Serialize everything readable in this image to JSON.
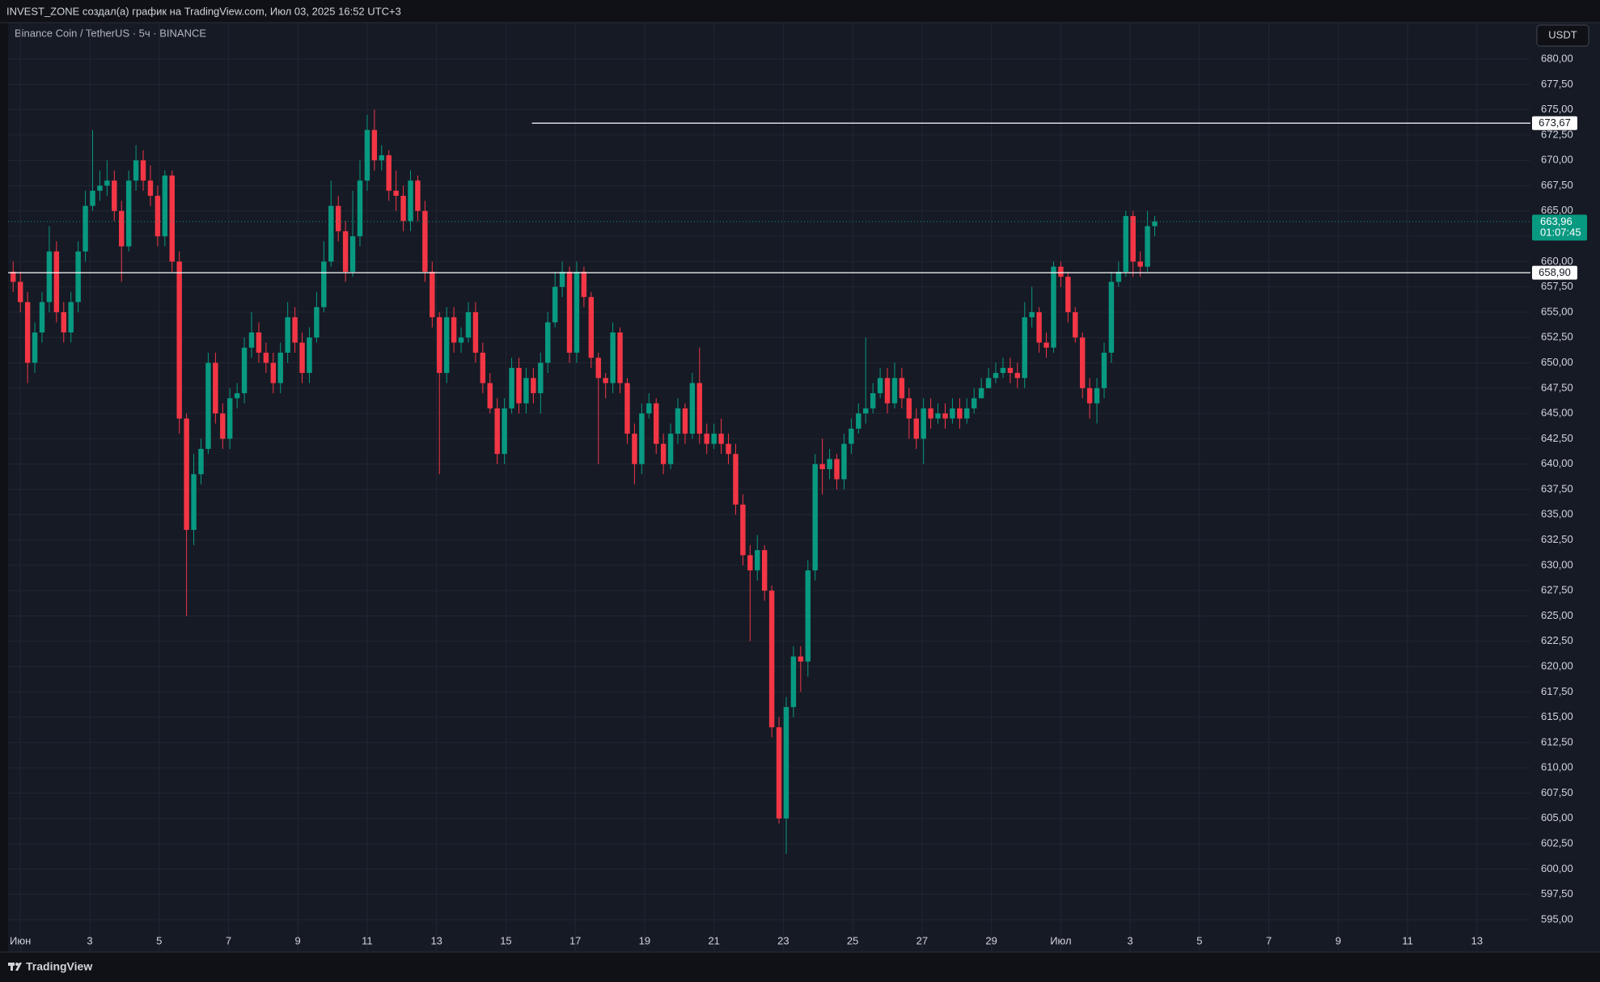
{
  "header": {
    "caption": "INVEST_ZONE создал(а) график на TradingView.com, Июл 03, 2025 16:52 UTC+3"
  },
  "footer": {
    "brand": "TradingView"
  },
  "chart_data": {
    "type": "candlestick",
    "title": "Binance Coin / TetherUS · 5ч · BINANCE",
    "currency": "USDT",
    "x": [
      -5,
      0,
      5,
      10,
      15,
      20,
      25,
      30,
      35,
      40,
      45,
      50,
      55,
      60,
      65,
      70,
      75,
      80,
      85,
      90,
      95,
      100,
      105,
      110,
      115,
      120,
      125,
      130,
      135,
      140,
      145,
      150,
      155,
      160,
      165,
      170,
      175,
      180,
      185,
      190,
      195,
      200,
      205,
      210,
      215,
      220,
      225,
      230,
      235,
      240,
      245,
      250,
      255,
      260,
      265,
      270,
      275,
      280,
      285,
      290,
      295,
      300,
      305,
      310,
      315,
      320,
      325,
      330,
      335,
      340,
      345,
      350,
      355,
      360,
      365,
      370,
      375,
      380,
      385,
      390,
      395,
      400,
      405,
      410,
      415,
      420,
      425,
      430,
      435,
      440,
      445,
      450,
      455,
      460,
      465,
      470,
      475,
      480,
      485,
      490,
      495,
      500,
      505,
      510,
      515,
      520,
      525,
      530,
      535,
      540,
      545,
      550,
      555,
      560,
      565,
      570,
      575,
      580,
      585,
      590,
      595,
      600,
      605,
      610,
      615,
      620,
      625,
      630,
      635,
      640,
      645,
      650,
      655,
      660,
      665,
      670,
      675,
      680,
      685,
      690,
      695,
      700,
      705,
      710,
      715,
      720,
      725,
      730,
      735,
      740,
      745,
      750,
      755,
      760,
      765,
      770,
      775,
      780,
      785
    ],
    "open": [
      659,
      658,
      656,
      650,
      653,
      656,
      661,
      655,
      653,
      656,
      661,
      665.5,
      667,
      667.5,
      668,
      665,
      661.5,
      668,
      670,
      668,
      666.5,
      662.5,
      668.5,
      660,
      644.5,
      633.5,
      639,
      641.5,
      650,
      645,
      642.5,
      646.5,
      647,
      651.5,
      653,
      651,
      650,
      648,
      651,
      654.5,
      652,
      649,
      652.5,
      655.5,
      660,
      665.5,
      663,
      659,
      662.5,
      668,
      673,
      670,
      670.5,
      667,
      666.5,
      664,
      668,
      665,
      659,
      654.5,
      649,
      654.5,
      652,
      652.5,
      655,
      651,
      648,
      645.5,
      641,
      645.5,
      649.5,
      646,
      648.5,
      647,
      650,
      654,
      657.5,
      659,
      651,
      659,
      656.5,
      650.5,
      648.5,
      648,
      653,
      648,
      643,
      640,
      645,
      646,
      642,
      640,
      643,
      645.5,
      643,
      648,
      643,
      642,
      643,
      642,
      641,
      636,
      631,
      629.5,
      631.5,
      627.5,
      614,
      605,
      616,
      621,
      620.5,
      629.5,
      640,
      639.5,
      640.5,
      638.5,
      642,
      643.5,
      645,
      645.5,
      647,
      648.5,
      646,
      648.5,
      646.5,
      644.5,
      642.5,
      645.5,
      644.5,
      645,
      644.5,
      645.5,
      644.5,
      645.5,
      646.5,
      647.5,
      648.5,
      649,
      649.5,
      649,
      648.5,
      654.5,
      655,
      652,
      651.5,
      659.5,
      658.5,
      655,
      652.5,
      647.5,
      646,
      647.5,
      651,
      658,
      659,
      664.5,
      660,
      659.5,
      663.5
    ],
    "high": [
      660,
      659,
      657,
      654,
      657,
      663.5,
      662,
      656,
      657,
      662,
      667,
      673,
      669,
      670,
      669,
      666,
      669,
      671.5,
      671,
      669.5,
      667.5,
      669,
      669,
      661,
      645,
      641,
      642.5,
      651,
      651,
      646,
      647.5,
      648,
      652.5,
      655,
      654,
      652,
      651,
      652,
      656,
      655.5,
      653,
      653.5,
      657,
      662,
      668,
      666.5,
      664,
      667,
      670,
      674.5,
      675,
      671.5,
      671,
      669,
      667.5,
      669,
      668.5,
      666,
      660,
      655,
      655.5,
      655.5,
      653.5,
      656,
      656,
      652,
      649,
      646.5,
      646.5,
      650.5,
      650.5,
      649.5,
      649.5,
      651,
      655,
      659,
      660,
      659.5,
      660,
      659.5,
      657,
      651,
      649,
      654,
      653.5,
      648.5,
      644,
      646,
      647,
      646.5,
      643,
      644,
      646.5,
      646,
      649,
      651.5,
      644,
      644,
      644.5,
      643,
      642,
      637,
      632,
      633,
      632,
      628,
      615,
      617,
      622,
      622,
      630.5,
      641,
      642.5,
      641.5,
      641,
      643,
      644.5,
      646,
      652.5,
      648,
      649.5,
      649.5,
      650,
      649.5,
      647.5,
      645.5,
      646.5,
      646.5,
      646,
      646,
      646.5,
      646.5,
      646.5,
      647.5,
      648.5,
      649.5,
      650,
      650.5,
      650.5,
      650,
      656,
      657.5,
      655.5,
      653,
      660,
      660,
      659,
      655.5,
      653,
      648.5,
      648.5,
      652,
      659,
      660,
      665,
      665,
      661,
      665,
      664.5
    ],
    "low": [
      657,
      655,
      648,
      649,
      652,
      655,
      654,
      652,
      652,
      655,
      660,
      665,
      666,
      666.5,
      664,
      658,
      661,
      667,
      667,
      665.5,
      661.5,
      661.5,
      659,
      643,
      625,
      632,
      638,
      641,
      644,
      641.5,
      641.5,
      645.5,
      646,
      650.5,
      650,
      649,
      647,
      647,
      650,
      651,
      648,
      648,
      652,
      655,
      659.5,
      662,
      658,
      658.5,
      661.5,
      667,
      669,
      669,
      666,
      665,
      663,
      663,
      664,
      658,
      653.5,
      639,
      648,
      651,
      651,
      652,
      650,
      647,
      645,
      640,
      640,
      645,
      645,
      645,
      646,
      645,
      649,
      653.5,
      656.5,
      650,
      650,
      655.5,
      649.5,
      640,
      646.5,
      647,
      647,
      642,
      638,
      639,
      644.5,
      641,
      639,
      639.5,
      642,
      642,
      642.5,
      642,
      641,
      641.5,
      641,
      640,
      635,
      630,
      622.5,
      628.5,
      626.5,
      613,
      604.5,
      601.5,
      615,
      617.5,
      619,
      628.5,
      637,
      638.5,
      637.5,
      637.5,
      641,
      643,
      644,
      645,
      646.5,
      645,
      645.5,
      645.5,
      642.5,
      641.5,
      640,
      643.5,
      644,
      643.5,
      644,
      643.5,
      644,
      645,
      646.5,
      647.5,
      648,
      648.5,
      648,
      647.5,
      647.5,
      653.5,
      651,
      650.5,
      651,
      657.5,
      654,
      652,
      646.5,
      644.5,
      644,
      646.5,
      650,
      657.5,
      658.5,
      658.5,
      658.5,
      659,
      662.5
    ],
    "close": [
      658,
      656,
      650,
      653,
      656,
      661,
      655,
      653,
      656,
      661,
      665.5,
      667,
      667.5,
      668,
      665,
      661.5,
      668,
      670,
      668,
      666.5,
      662.5,
      668.5,
      660,
      644.5,
      633.5,
      639,
      641.5,
      650,
      645,
      642.5,
      646.5,
      647,
      651.5,
      653,
      651,
      650,
      648,
      651,
      654.5,
      652,
      649,
      652.5,
      655.5,
      660,
      665.5,
      663,
      659,
      662.5,
      668,
      673,
      670,
      670.5,
      667,
      666.5,
      664,
      668,
      665,
      659,
      654.5,
      649,
      654.5,
      652,
      652.5,
      655,
      651,
      648,
      645.5,
      641,
      645.5,
      649.5,
      646,
      648.5,
      647,
      650,
      654,
      657.5,
      659,
      651,
      659,
      656.5,
      650.5,
      648.5,
      648,
      653,
      648,
      643,
      640,
      645,
      646,
      642,
      640,
      643,
      645.5,
      643,
      648,
      643,
      642,
      643,
      642,
      641,
      636,
      631,
      629.5,
      631.5,
      627.5,
      614,
      605,
      616,
      621,
      620.5,
      629.5,
      640,
      639.5,
      640.5,
      638.5,
      642,
      643.5,
      645,
      645.5,
      647,
      648.5,
      646,
      648.5,
      646.5,
      644.5,
      642.5,
      645.5,
      644.5,
      645,
      644.5,
      645.5,
      644.5,
      645.5,
      646.5,
      647.5,
      648.5,
      649,
      649.5,
      649,
      648.5,
      654.5,
      655,
      652,
      651.5,
      659.5,
      658.5,
      655,
      652.5,
      647.5,
      646,
      647.5,
      651,
      658,
      659,
      664.5,
      660,
      659.5,
      663.5,
      663.96
    ],
    "up_color": "#089981",
    "down_color": "#f23645",
    "xlim": [
      -8.5,
      1045
    ],
    "xticks": [
      {
        "value": 0,
        "label": "Июн"
      },
      {
        "value": 48,
        "label": "3"
      },
      {
        "value": 96,
        "label": "5"
      },
      {
        "value": 144,
        "label": "7"
      },
      {
        "value": 192,
        "label": "9"
      },
      {
        "value": 240,
        "label": "11"
      },
      {
        "value": 288,
        "label": "13"
      },
      {
        "value": 336,
        "label": "15"
      },
      {
        "value": 384,
        "label": "17"
      },
      {
        "value": 432,
        "label": "19"
      },
      {
        "value": 480,
        "label": "21"
      },
      {
        "value": 528,
        "label": "23"
      },
      {
        "value": 576,
        "label": "25"
      },
      {
        "value": 624,
        "label": "27"
      },
      {
        "value": 672,
        "label": "29"
      },
      {
        "value": 720,
        "label": "Июл"
      },
      {
        "value": 768,
        "label": "3"
      },
      {
        "value": 816,
        "label": "5"
      },
      {
        "value": 864,
        "label": "7"
      },
      {
        "value": 912,
        "label": "9"
      },
      {
        "value": 960,
        "label": "11"
      },
      {
        "value": 1008,
        "label": "13"
      }
    ],
    "ylim": [
      591.8,
      683.6
    ],
    "yticks": [
      {
        "value": 595,
        "label": "595,00"
      },
      {
        "value": 597.5,
        "label": "597,50"
      },
      {
        "value": 600,
        "label": "600,00"
      },
      {
        "value": 602.5,
        "label": "602,50"
      },
      {
        "value": 605,
        "label": "605,00"
      },
      {
        "value": 607.5,
        "label": "607,50"
      },
      {
        "value": 610,
        "label": "610,00"
      },
      {
        "value": 612.5,
        "label": "612,50"
      },
      {
        "value": 615,
        "label": "615,00"
      },
      {
        "value": 617.5,
        "label": "617,50"
      },
      {
        "value": 620,
        "label": "620,00"
      },
      {
        "value": 622.5,
        "label": "622,50"
      },
      {
        "value": 625,
        "label": "625,00"
      },
      {
        "value": 627.5,
        "label": "627,50"
      },
      {
        "value": 630,
        "label": "630,00"
      },
      {
        "value": 632.5,
        "label": "632,50"
      },
      {
        "value": 635,
        "label": "635,00"
      },
      {
        "value": 637.5,
        "label": "637,50"
      },
      {
        "value": 640,
        "label": "640,00"
      },
      {
        "value": 642.5,
        "label": "642,50"
      },
      {
        "value": 645,
        "label": "645,00"
      },
      {
        "value": 647.5,
        "label": "647,50"
      },
      {
        "value": 650,
        "label": "650,00"
      },
      {
        "value": 652.5,
        "label": "652,50"
      },
      {
        "value": 655,
        "label": "655,00"
      },
      {
        "value": 657.5,
        "label": "657,50"
      },
      {
        "value": 660,
        "label": "660,00"
      },
      {
        "value": 662.5,
        "label": "662,50"
      },
      {
        "value": 665,
        "label": "665,00"
      },
      {
        "value": 667.5,
        "label": "667,50"
      },
      {
        "value": 670,
        "label": "670,00"
      },
      {
        "value": 672.5,
        "label": "672,50"
      },
      {
        "value": 675,
        "label": "675,00"
      },
      {
        "value": 677.5,
        "label": "677,50"
      },
      {
        "value": 680,
        "label": "680,00"
      }
    ],
    "grid": true,
    "levels": [
      {
        "value": 673.67,
        "label": "673,67",
        "x_start": 354
      },
      {
        "value": 658.9,
        "label": "658,90"
      }
    ],
    "last_price": {
      "value": 663.96,
      "label": "663,96",
      "countdown": "01:07:45"
    }
  }
}
